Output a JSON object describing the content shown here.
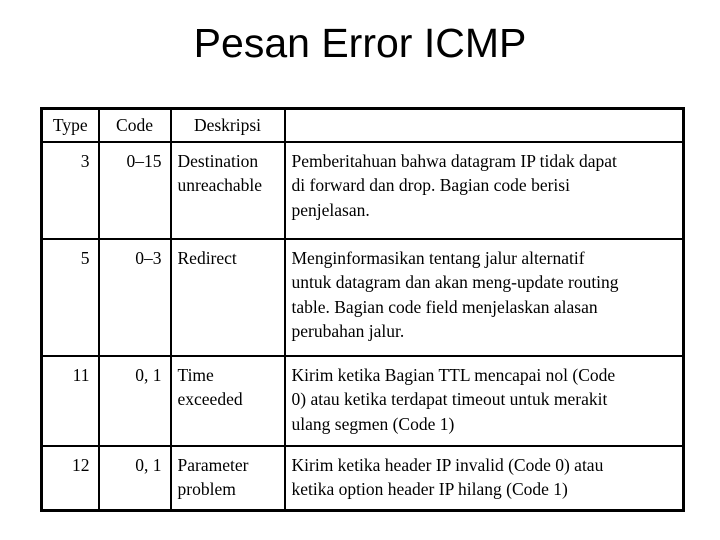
{
  "title": "Pesan Error ICMP",
  "table": {
    "headers": [
      "Type",
      "Code",
      "Deskripsi",
      ""
    ],
    "rows": [
      {
        "type": "3",
        "code": "0–15",
        "name": [
          "Destination",
          "unreachable"
        ],
        "desc": [
          "Pemberitahuan bahwa datagram IP tidak dapat",
          "di forward dan drop. Bagian code berisi",
          "penjelasan."
        ]
      },
      {
        "type": "5",
        "code": "0–3",
        "name": [
          "Redirect"
        ],
        "desc": [
          "Menginformasikan tentang jalur alternatif",
          "untuk datagram dan akan meng-update routing",
          "table. Bagian code field menjelaskan alasan",
          "perubahan jalur."
        ]
      },
      {
        "type": "11",
        "code": "0, 1",
        "name": [
          "Time",
          "exceeded"
        ],
        "desc": [
          "Kirim ketika Bagian TTL mencapai nol (Code",
          "0) atau ketika terdapat timeout untuk merakit",
          "ulang segmen (Code 1)"
        ]
      },
      {
        "type": "12",
        "code": "0, 1",
        "name": [
          "Parameter",
          "problem"
        ],
        "desc": [
          "Kirim ketika header IP invalid (Code 0) atau",
          "ketika option header IP hilang (Code 1)"
        ]
      }
    ]
  }
}
